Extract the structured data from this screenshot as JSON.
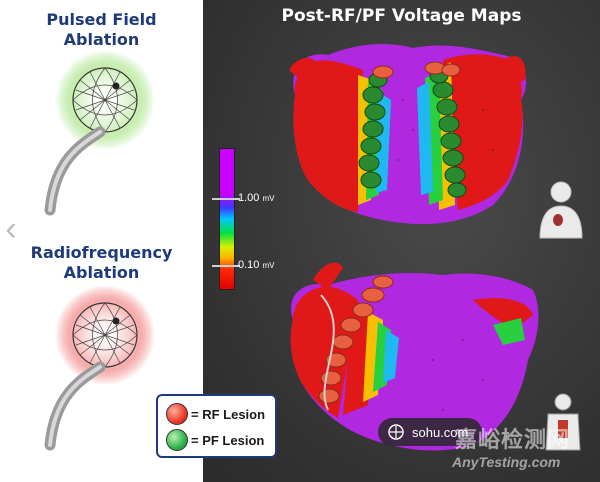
{
  "left_panel": {
    "pf_title": "Pulsed Field\nAblation",
    "rf_title": "Radiofrequency\nAblation",
    "pf_glow_color": "#9be07a",
    "rf_glow_color": "#f07070"
  },
  "main": {
    "title": "Post-RF/PF Voltage Maps",
    "scale": {
      "high_value": "1.00",
      "low_value": "0.10",
      "unit": "mV"
    }
  },
  "legend": {
    "rf_label": "= RF Lesion",
    "pf_label": "= PF Lesion",
    "rf_color": "#ee3a2a",
    "pf_color": "#2fb34a"
  },
  "overlay": {
    "sohu_label": "sohu.com",
    "watermark_cn": "嘉峪检测网",
    "watermark_en": "AnyTesting.com"
  },
  "icons": [
    "prev-arrow-icon",
    "torso-icon",
    "body-icon",
    "sohu-logo-icon"
  ]
}
